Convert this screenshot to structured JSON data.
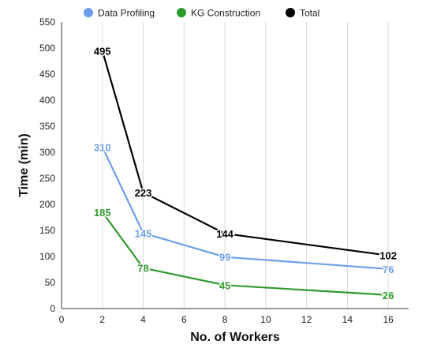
{
  "chart_data": {
    "type": "line",
    "title": "",
    "xlabel": "No. of Workers",
    "ylabel": "Time (min)",
    "xlim": [
      0,
      17
    ],
    "ylim": [
      0,
      550
    ],
    "xticks": [
      0,
      2,
      4,
      6,
      8,
      10,
      12,
      14,
      16
    ],
    "yticks": [
      0,
      50,
      100,
      150,
      200,
      250,
      300,
      350,
      400,
      450,
      500,
      550
    ],
    "grid": "vertical",
    "legend_position": "top",
    "x": [
      2,
      4,
      8,
      16
    ],
    "series": [
      {
        "name": "Data Profiling",
        "color": "#6d9eeb",
        "values": [
          310,
          145,
          99,
          76
        ]
      },
      {
        "name": "KG Construction",
        "color": "#2f9a2f",
        "values": [
          185,
          78,
          45,
          26
        ]
      },
      {
        "name": "Total",
        "color": "#000000",
        "values": [
          495,
          223,
          144,
          102
        ]
      }
    ]
  }
}
